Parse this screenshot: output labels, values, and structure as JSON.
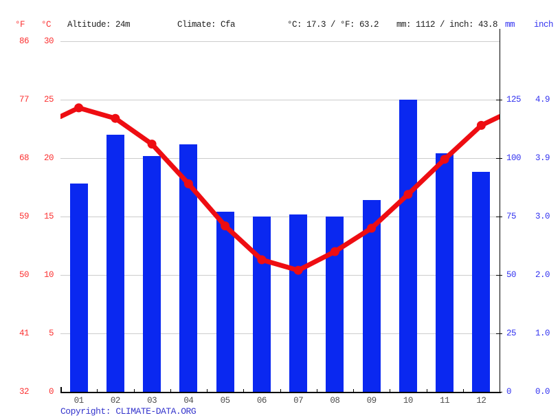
{
  "header": {
    "f_unit": "°F",
    "c_unit": "°C",
    "altitude": "Altitude: 24m",
    "climate": "Climate: Cfa",
    "temp_summary": "°C: 17.3 / °F: 63.2",
    "precip_summary": "mm: 1112 / inch: 43.8",
    "mm_unit": "mm",
    "inch_unit": "inch"
  },
  "footer": {
    "copyright_label": "Copyright:",
    "link_text": "CLIMATE-DATA.ORG"
  },
  "axes": {
    "fahrenheit": [
      "86",
      "77",
      "68",
      "59",
      "50",
      "41",
      "32"
    ],
    "celsius": [
      "30",
      "25",
      "20",
      "15",
      "10",
      "5",
      "0"
    ],
    "mm": [
      "125",
      "100",
      "75",
      "50",
      "25",
      "0"
    ],
    "inch": [
      "4.9",
      "3.9",
      "3.0",
      "2.0",
      "1.0",
      "0.0"
    ]
  },
  "chart_data": {
    "type": "bar+line",
    "title": "Climate graph",
    "categories": [
      "01",
      "02",
      "03",
      "04",
      "05",
      "06",
      "07",
      "08",
      "09",
      "10",
      "11",
      "12"
    ],
    "series": [
      {
        "name": "precipitation",
        "type": "bar",
        "unit": "mm",
        "values": [
          89,
          110,
          101,
          106,
          77,
          75,
          76,
          75,
          82,
          125,
          102,
          94
        ]
      },
      {
        "name": "temperature",
        "type": "line",
        "unit": "°C",
        "values": [
          24.3,
          23.4,
          21.2,
          17.8,
          14.2,
          11.3,
          10.4,
          12.0,
          14.0,
          16.9,
          19.9,
          22.8
        ]
      }
    ],
    "temp_axis": {
      "min": 0,
      "max": 30,
      "step": 5,
      "unit_left": "°F",
      "unit_right": "°C"
    },
    "precip_axis": {
      "min": 0,
      "max": 150,
      "step": 25,
      "unit_left": "mm",
      "unit_right": "inch"
    },
    "grid": true,
    "legend_position": "none",
    "annual_mean_c": 17.3,
    "annual_mean_f": 63.2,
    "annual_precip_mm": 1112,
    "annual_precip_inch": 43.8
  },
  "colors": {
    "bar_blue": "#0a28f0",
    "line_red": "#ee0d12",
    "red_label": "#fb3232",
    "blue_label": "#3333f0",
    "copyright_blue": "#3434cc",
    "month_gray": "#4c4c4c",
    "header_text": "#1c1c1c",
    "gridline": "#cccccc",
    "axis_black": "#000000"
  }
}
